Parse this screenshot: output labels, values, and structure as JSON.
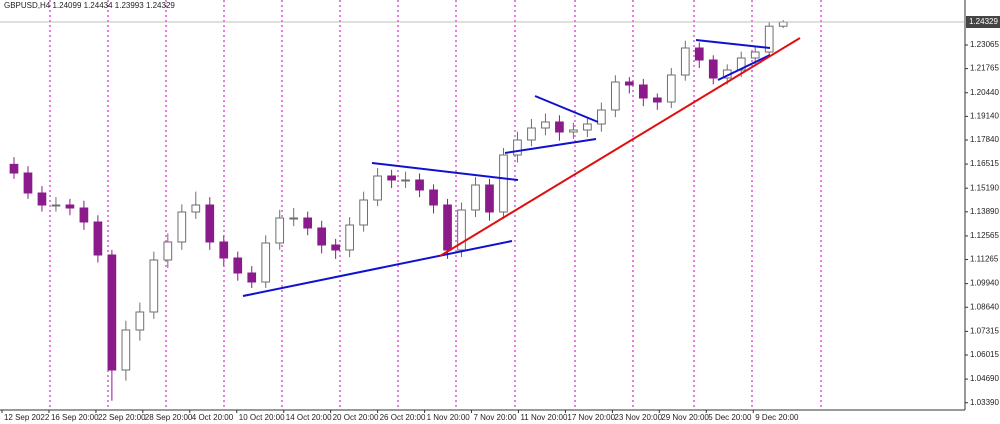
{
  "chart_data": {
    "type": "candlestick",
    "symbol": "GBPUSD,H4",
    "x": [
      0,
      1,
      2,
      3,
      4,
      5,
      6,
      7,
      8,
      9,
      10,
      11,
      12,
      13,
      14,
      15,
      16,
      17,
      18,
      19,
      20,
      21,
      22,
      23,
      24,
      25,
      26,
      27,
      28,
      29,
      30,
      31,
      32,
      33,
      34,
      35,
      36,
      37,
      38,
      39,
      40,
      41,
      42,
      43,
      44,
      45,
      46,
      47,
      48,
      49,
      50,
      51,
      52,
      53,
      54,
      55
    ],
    "open": [
      1.165,
      1.16025,
      1.14925,
      1.14265,
      1.14265,
      1.141,
      1.1333,
      1.11515,
      1.0519,
      1.0739,
      1.0838,
      1.1124,
      1.1223,
      1.1388,
      1.14265,
      1.1223,
      1.1135,
      1.10525,
      1.1003,
      1.12175,
      1.1355,
      1.1355,
      1.13,
      1.12065,
      1.1179,
      1.13165,
      1.1454,
      1.1586,
      1.1564,
      1.1564,
      1.1509,
      1.14265,
      1.1179,
      1.1399,
      1.15365,
      1.1388,
      1.17015,
      1.1784,
      1.185,
      1.1883,
      1.1828,
      1.1839,
      1.1872,
      1.1949,
      1.2103,
      1.20865,
      1.2015,
      1.1993,
      1.21415,
      1.229,
      1.2224,
      1.2125,
      1.2169,
      1.2235,
      1.2268,
      1.24099
    ],
    "high": [
      1.169,
      1.164,
      1.153,
      1.147,
      1.146,
      1.145,
      1.137,
      1.118,
      1.079,
      1.089,
      1.117,
      1.127,
      1.143,
      1.15,
      1.147,
      1.126,
      1.117,
      1.109,
      1.126,
      1.14,
      1.141,
      1.139,
      1.134,
      1.124,
      1.136,
      1.15,
      1.163,
      1.162,
      1.161,
      1.16,
      1.154,
      1.146,
      1.144,
      1.158,
      1.157,
      1.174,
      1.183,
      1.19,
      1.193,
      1.192,
      1.188,
      1.191,
      1.199,
      1.214,
      1.213,
      1.212,
      1.204,
      1.218,
      1.233,
      1.232,
      1.225,
      1.22,
      1.227,
      1.23,
      1.243,
      1.24434
    ],
    "low": [
      1.157,
      1.146,
      1.139,
      1.139,
      1.137,
      1.129,
      1.111,
      1.035,
      1.046,
      1.068,
      1.08,
      1.108,
      1.118,
      1.135,
      1.118,
      1.109,
      1.101,
      1.097,
      1.097,
      1.118,
      1.131,
      1.126,
      1.116,
      1.113,
      1.114,
      1.128,
      1.142,
      1.152,
      1.152,
      1.147,
      1.138,
      1.113,
      1.114,
      1.136,
      1.134,
      1.135,
      1.166,
      1.175,
      1.181,
      1.178,
      1.179,
      1.18,
      1.183,
      1.191,
      1.204,
      1.197,
      1.195,
      1.196,
      1.211,
      1.218,
      1.209,
      1.209,
      1.213,
      1.22,
      1.224,
      1.23993
    ],
    "close": [
      1.16025,
      1.14925,
      1.14265,
      1.14265,
      1.141,
      1.1333,
      1.11515,
      1.0519,
      1.0739,
      1.0838,
      1.1124,
      1.1223,
      1.1388,
      1.14265,
      1.1223,
      1.1135,
      1.10525,
      1.1003,
      1.12175,
      1.1355,
      1.1355,
      1.13,
      1.12065,
      1.1179,
      1.13165,
      1.1454,
      1.1586,
      1.1564,
      1.1564,
      1.1509,
      1.14265,
      1.1179,
      1.1399,
      1.15365,
      1.1388,
      1.17015,
      1.1784,
      1.185,
      1.1883,
      1.1828,
      1.1839,
      1.1872,
      1.1949,
      1.2103,
      1.20865,
      1.2015,
      1.1993,
      1.21415,
      1.229,
      1.2224,
      1.2125,
      1.2169,
      1.2235,
      1.2268,
      1.241,
      1.24329
    ],
    "up_color": "#6e6e6e",
    "down_color": "#8b1a8b",
    "xlim": [
      -1,
      68
    ],
    "xticks": [
      {
        "value": -0.86,
        "label": "12 Sep 2022"
      },
      {
        "value": 2.5,
        "label": "16 Sep 20:00"
      },
      {
        "value": 5.86,
        "label": "22 Sep 20:00"
      },
      {
        "value": 9.21,
        "label": "28 Sep 20:00"
      },
      {
        "value": 12.57,
        "label": "4 Oct 20:00"
      },
      {
        "value": 15.93,
        "label": "10 Oct 20:00"
      },
      {
        "value": 19.29,
        "label": "14 Oct 20:00"
      },
      {
        "value": 22.64,
        "label": "20 Oct 20:00"
      },
      {
        "value": 26.0,
        "label": "26 Oct 20:00"
      },
      {
        "value": 29.36,
        "label": "1 Nov 20:00"
      },
      {
        "value": 32.71,
        "label": "7 Nov 20:00"
      },
      {
        "value": 36.07,
        "label": "11 Nov 20:00"
      },
      {
        "value": 39.43,
        "label": "17 Nov 20:00"
      },
      {
        "value": 42.79,
        "label": "23 Nov 20:00"
      },
      {
        "value": 46.14,
        "label": "29 Nov 20:00"
      },
      {
        "value": 49.5,
        "label": "5 Dec 20:00"
      },
      {
        "value": 52.86,
        "label": "9 Dec 20:00"
      }
    ],
    "ylim": [
      1.0299,
      1.2554
    ],
    "yticks": [
      1.23065,
      1.21765,
      {
        "value": 1.2044,
        "label": "1.20440"
      },
      {
        "value": 1.1914,
        "label": "1.19140"
      },
      {
        "value": 1.1784,
        "label": "1.17840"
      },
      1.16515,
      {
        "value": 1.1519,
        "label": "1.15190"
      },
      {
        "value": 1.1389,
        "label": "1.13890"
      },
      1.12565,
      1.11265,
      {
        "value": 1.0994,
        "label": "1.09940"
      },
      {
        "value": 1.0864,
        "label": "1.08640"
      },
      1.07315,
      1.06015,
      {
        "value": 1.0469,
        "label": "1.04690"
      },
      {
        "value": 1.0339,
        "label": "1.03390"
      }
    ]
  }
}
